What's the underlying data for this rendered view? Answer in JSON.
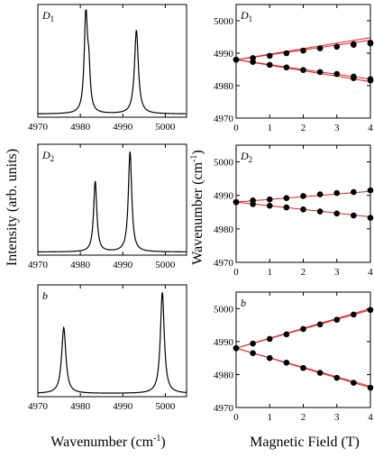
{
  "chart_data": [
    {
      "type": "line",
      "panel_label": "D",
      "panel_label_sub": "1",
      "x_ticks": [
        "4970",
        "4980",
        "4990",
        "5000"
      ],
      "xlim": [
        4970,
        5005
      ],
      "peaks": [
        {
          "center": 4981.3,
          "height": 0.93,
          "width": 0.45
        },
        {
          "center": 4982.0,
          "height": 0.34,
          "width": 0.38
        },
        {
          "center": 4993.2,
          "height": 0.78,
          "width": 0.55
        }
      ],
      "baseline": 0.03
    },
    {
      "type": "line",
      "panel_label": "D",
      "panel_label_sub": "2",
      "x_ticks": [
        "4970",
        "4980",
        "4990",
        "5000"
      ],
      "xlim": [
        4970,
        5005
      ],
      "peaks": [
        {
          "center": 4983.5,
          "height": 0.67,
          "width": 0.45
        },
        {
          "center": 4991.7,
          "height": 0.95,
          "width": 0.48
        }
      ],
      "baseline": 0.03
    },
    {
      "type": "line",
      "panel_label": "b",
      "x_ticks": [
        "4970",
        "4980",
        "4990",
        "5000"
      ],
      "xlim": [
        4970,
        5005
      ],
      "peaks": [
        {
          "center": 4976.1,
          "height": 0.62,
          "width": 0.6
        },
        {
          "center": 4999.3,
          "height": 0.95,
          "width": 0.55
        }
      ],
      "baseline": 0.03
    },
    {
      "type": "scatter",
      "panel_label": "D",
      "panel_label_sub": "1",
      "xlim": [
        0,
        4
      ],
      "ylim": [
        4970,
        5005
      ],
      "x_ticks": [
        "0",
        "1",
        "2",
        "3",
        "4"
      ],
      "y_ticks": [
        "4970",
        "4980",
        "4990",
        "5000"
      ],
      "fit_center": 4988.0,
      "fit_slopes": [
        1.5,
        1.7,
        -1.5,
        -1.7
      ],
      "series": [
        {
          "x": [
            0,
            0.5,
            1,
            1.5,
            2,
            2.5,
            3,
            3.5,
            4
          ],
          "y": [
            4988.0,
            4988.5,
            4989.2,
            4990.0,
            4990.8,
            4991.5,
            4992.0,
            4992.6,
            4993.0
          ]
        },
        {
          "x": [
            3.5,
            4
          ],
          "y": [
            4992.8,
            4993.2
          ]
        },
        {
          "x": [
            0,
            0.5,
            1,
            1.5,
            2,
            2.5,
            3,
            3.5,
            4
          ],
          "y": [
            4988.0,
            4987.3,
            4986.4,
            4985.6,
            4984.8,
            4984.2,
            4983.6,
            4982.8,
            4982.0
          ]
        },
        {
          "x": [
            3.5,
            4
          ],
          "y": [
            4982.3,
            4981.6
          ]
        }
      ]
    },
    {
      "type": "scatter",
      "panel_label": "D",
      "panel_label_sub": "2",
      "xlim": [
        0,
        4
      ],
      "ylim": [
        4970,
        5005
      ],
      "x_ticks": [
        "0",
        "1",
        "2",
        "3",
        "4"
      ],
      "y_ticks": [
        "4970",
        "4980",
        "4990",
        "5000"
      ],
      "fit_center": 4988.0,
      "fit_slopes": [
        0.8,
        -1.1
      ],
      "series": [
        {
          "x": [
            0,
            0.5,
            1,
            1.5,
            2,
            2.5,
            3,
            3.5,
            4
          ],
          "y": [
            4988.0,
            4988.5,
            4988.8,
            4989.2,
            4989.8,
            4990.3,
            4990.7,
            4991.0,
            4991.5
          ]
        },
        {
          "x": [
            0,
            0.5,
            1,
            1.5,
            2,
            2.5,
            3,
            3.5,
            4
          ],
          "y": [
            4988.0,
            4987.4,
            4986.9,
            4986.4,
            4985.8,
            4985.2,
            4984.6,
            4984.0,
            4983.3
          ]
        }
      ]
    },
    {
      "type": "scatter",
      "panel_label": "b",
      "xlim": [
        0,
        4
      ],
      "ylim": [
        4970,
        5005
      ],
      "x_ticks": [
        "0",
        "1",
        "2",
        "3",
        "4"
      ],
      "y_ticks": [
        "4970",
        "4980",
        "4990",
        "5000"
      ],
      "fit_center": 4988.0,
      "fit_slopes": [
        2.9,
        3.0,
        -2.9,
        -3.0
      ],
      "series": [
        {
          "x": [
            0,
            0.5,
            1,
            1.5,
            2,
            2.5,
            3,
            3.5,
            4
          ],
          "y": [
            4988.0,
            4989.4,
            4990.8,
            4992.2,
            4993.8,
            4995.2,
            4996.6,
            4998.2,
            4999.6
          ]
        },
        {
          "x": [
            0,
            0.5,
            1,
            1.5,
            2,
            2.5,
            3,
            3.5,
            4
          ],
          "y": [
            4988.0,
            4986.5,
            4985.0,
            4983.6,
            4982.0,
            4980.5,
            4979.0,
            4977.5,
            4976.0
          ]
        }
      ]
    }
  ],
  "labels": {
    "left_ylabel": "Intensity (arb. units)",
    "left_xlabel_base": "Wavenumber (cm",
    "left_xlabel_sup": "-1",
    "left_xlabel_end": ")",
    "right_ylabel_base": "Wavenumber (cm",
    "right_ylabel_sup": "-1",
    "right_ylabel_end": ")",
    "right_xlabel": "Magnetic Field (T)"
  },
  "colors": {
    "axis": "#000000",
    "spectrum": "#000000",
    "points": "#000000",
    "fit": "#e02020"
  }
}
